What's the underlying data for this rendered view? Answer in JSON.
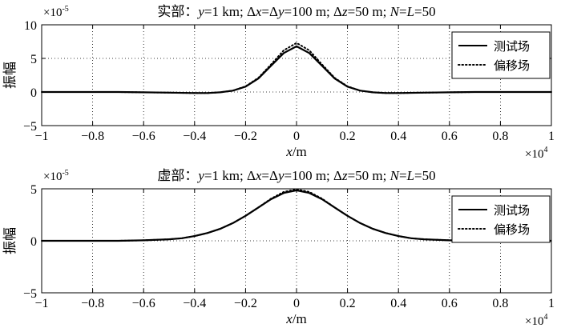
{
  "chart_data": [
    {
      "type": "line",
      "title": "实部：y=1 km; Δx=Δy=100 m; Δz=50 m; N=L=50",
      "title_parts": {
        "prefix": "实部：",
        "y_eq": "=1 km; Δ",
        "x_eq": "=Δ",
        "y2_eq": "=100 m; Δ",
        "z_eq": "=50 m; ",
        "N": "N",
        "eq2": "=",
        "L": "L",
        "tail": "=50"
      },
      "xlabel": "x/m",
      "ylabel": "振幅",
      "x_multiplier": "×10",
      "x_multiplier_exp": "4",
      "y_multiplier": "×10",
      "y_multiplier_exp": "-5",
      "xlim": [
        -1,
        1
      ],
      "ylim": [
        -5,
        10
      ],
      "xticks": [
        -1,
        -0.8,
        -0.6,
        -0.4,
        -0.2,
        0,
        0.2,
        0.4,
        0.6,
        0.8,
        1
      ],
      "xtick_labels": [
        "−1",
        "−0.8",
        "−0.6",
        "−0.4",
        "−0.2",
        "0",
        "0.2",
        "0.4",
        "0.6",
        "0.8",
        "1"
      ],
      "yticks": [
        -5,
        0,
        5,
        10
      ],
      "ytick_labels": [
        "−5",
        "0",
        "5",
        "10"
      ],
      "grid": true,
      "legend_position": "top-right",
      "series": [
        {
          "name": "测试场",
          "style": "solid",
          "x": [
            -1,
            -0.9,
            -0.8,
            -0.7,
            -0.6,
            -0.5,
            -0.4,
            -0.35,
            -0.3,
            -0.25,
            -0.2,
            -0.15,
            -0.1,
            -0.05,
            0,
            0.05,
            0.1,
            0.15,
            0.2,
            0.25,
            0.3,
            0.35,
            0.4,
            0.5,
            0.6,
            0.7,
            0.8,
            0.9,
            1
          ],
          "values": [
            0,
            0,
            0,
            0,
            -0.05,
            -0.1,
            -0.15,
            -0.15,
            -0.05,
            0.2,
            0.8,
            2.0,
            3.9,
            5.8,
            6.8,
            5.8,
            3.9,
            2.0,
            0.8,
            0.2,
            -0.05,
            -0.15,
            -0.15,
            -0.1,
            -0.05,
            0,
            0,
            0,
            0
          ]
        },
        {
          "name": "偏移场",
          "style": "dotted",
          "x": [
            -1,
            -0.9,
            -0.8,
            -0.7,
            -0.6,
            -0.5,
            -0.4,
            -0.35,
            -0.3,
            -0.25,
            -0.2,
            -0.15,
            -0.1,
            -0.05,
            0,
            0.05,
            0.1,
            0.15,
            0.2,
            0.25,
            0.3,
            0.35,
            0.4,
            0.5,
            0.6,
            0.7,
            0.8,
            0.9,
            1
          ],
          "values": [
            0,
            0,
            0,
            0,
            -0.05,
            -0.1,
            -0.15,
            -0.15,
            -0.05,
            0.2,
            0.85,
            2.1,
            4.1,
            6.2,
            7.3,
            6.2,
            4.1,
            2.1,
            0.85,
            0.2,
            -0.05,
            -0.15,
            -0.15,
            -0.1,
            -0.05,
            0,
            0,
            0,
            0
          ]
        }
      ]
    },
    {
      "type": "line",
      "title": "虚部：y=1 km; Δx=Δy=100 m; Δz=50 m; N=L=50",
      "title_parts": {
        "prefix": "虚部：",
        "y_eq": "=1 km; Δ",
        "x_eq": "=Δ",
        "y2_eq": "=100 m; Δ",
        "z_eq": "=50 m; ",
        "N": "N",
        "eq2": "=",
        "L": "L",
        "tail": "=50"
      },
      "xlabel": "x/m",
      "ylabel": "振幅",
      "x_multiplier": "×10",
      "x_multiplier_exp": "4",
      "y_multiplier": "×10",
      "y_multiplier_exp": "-5",
      "xlim": [
        -1,
        1
      ],
      "ylim": [
        -5,
        5
      ],
      "xticks": [
        -1,
        -0.8,
        -0.6,
        -0.4,
        -0.2,
        0,
        0.2,
        0.4,
        0.6,
        0.8,
        1
      ],
      "xtick_labels": [
        "−1",
        "−0.8",
        "−0.6",
        "−0.4",
        "−0.2",
        "0",
        "0.2",
        "0.4",
        "0.6",
        "0.8",
        "1"
      ],
      "yticks": [
        -5,
        0,
        5
      ],
      "ytick_labels": [
        "−5",
        "0",
        "5"
      ],
      "grid": true,
      "legend_position": "top-right",
      "series": [
        {
          "name": "测试场",
          "style": "solid",
          "x": [
            -1,
            -0.9,
            -0.8,
            -0.7,
            -0.6,
            -0.5,
            -0.45,
            -0.4,
            -0.35,
            -0.3,
            -0.25,
            -0.2,
            -0.15,
            -0.1,
            -0.05,
            0,
            0.05,
            0.1,
            0.15,
            0.2,
            0.25,
            0.3,
            0.35,
            0.4,
            0.45,
            0.5,
            0.6,
            0.7,
            0.8,
            0.9,
            1
          ],
          "values": [
            0,
            0,
            0,
            0,
            0.05,
            0.15,
            0.25,
            0.45,
            0.75,
            1.15,
            1.7,
            2.4,
            3.2,
            4.0,
            4.6,
            4.85,
            4.6,
            4.0,
            3.2,
            2.4,
            1.7,
            1.15,
            0.75,
            0.45,
            0.25,
            0.15,
            0.05,
            0,
            0,
            0,
            0
          ]
        },
        {
          "name": "偏移场",
          "style": "dotted",
          "x": [
            -1,
            -0.9,
            -0.8,
            -0.7,
            -0.6,
            -0.5,
            -0.45,
            -0.4,
            -0.35,
            -0.3,
            -0.25,
            -0.2,
            -0.15,
            -0.1,
            -0.05,
            0,
            0.05,
            0.1,
            0.15,
            0.2,
            0.25,
            0.3,
            0.35,
            0.4,
            0.45,
            0.5,
            0.6,
            0.7,
            0.8,
            0.9,
            1
          ],
          "values": [
            0,
            0,
            0,
            0,
            0.05,
            0.15,
            0.25,
            0.45,
            0.75,
            1.15,
            1.7,
            2.4,
            3.2,
            4.05,
            4.7,
            4.95,
            4.7,
            4.05,
            3.2,
            2.4,
            1.7,
            1.15,
            0.75,
            0.45,
            0.25,
            0.15,
            0.05,
            0,
            0,
            0,
            0
          ]
        }
      ]
    }
  ]
}
